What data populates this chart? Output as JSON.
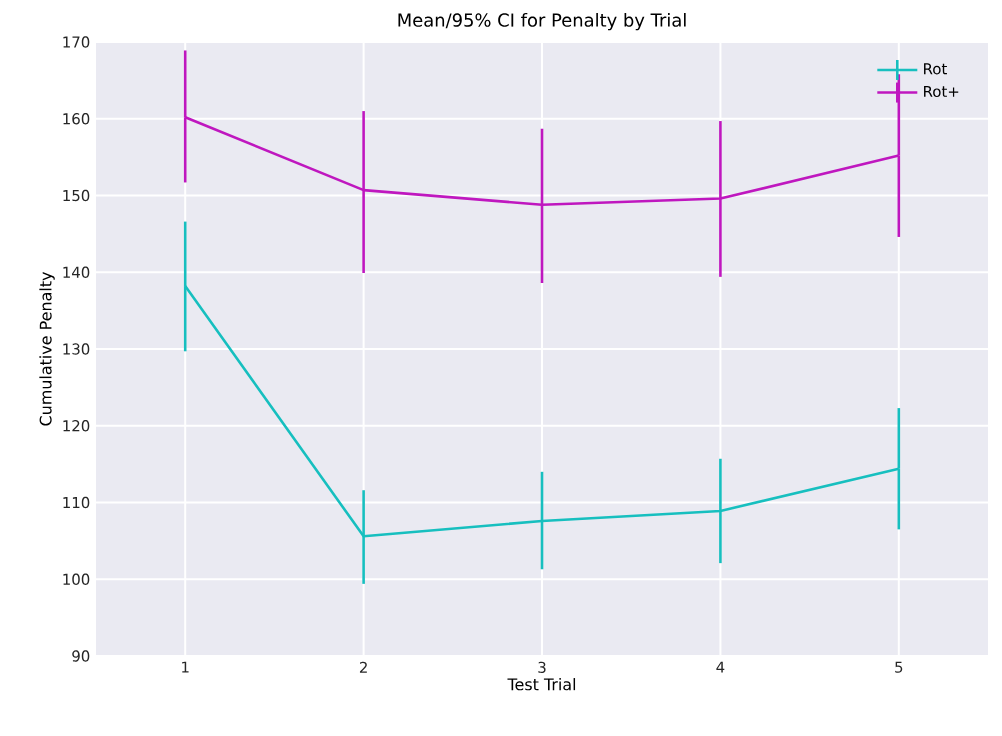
{
  "chart_data": {
    "type": "line",
    "title": "Mean/95% CI for Penalty by Trial",
    "xlabel": "Test Trial",
    "ylabel": "Cumulative Penalty",
    "x": [
      1,
      2,
      3,
      4,
      5
    ],
    "xlim": [
      0.5,
      5.5
    ],
    "xticks": [
      1,
      2,
      3,
      4,
      5
    ],
    "ylim": [
      90,
      170
    ],
    "yticks": [
      90,
      100,
      110,
      120,
      130,
      140,
      150,
      160,
      170
    ],
    "grid": true,
    "legend": "top right",
    "marker": "none",
    "line_style": "solid",
    "series": [
      {
        "name": "Rot",
        "color": "#17bfbf",
        "values": [
          138.2,
          105.6,
          107.6,
          108.9,
          114.4
        ],
        "errors": [
          [
            129.7,
            146.6
          ],
          [
            99.4,
            111.6
          ],
          [
            101.3,
            114.0
          ],
          [
            102.1,
            115.7
          ],
          [
            106.5,
            122.3
          ]
        ]
      },
      {
        "name": "Rot+",
        "color": "#bf17bf",
        "values": [
          160.2,
          150.7,
          148.8,
          149.6,
          155.2
        ],
        "errors": [
          [
            151.7,
            168.9
          ],
          [
            139.9,
            161.0
          ],
          [
            138.6,
            158.7
          ],
          [
            139.4,
            159.7
          ],
          [
            144.6,
            165.8
          ]
        ]
      }
    ]
  }
}
